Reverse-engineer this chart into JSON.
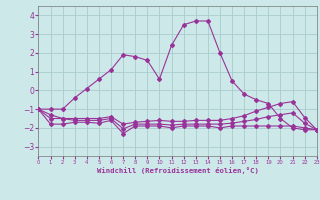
{
  "xlabel": "Windchill (Refroidissement éolien,°C)",
  "bg_color": "#cce8e8",
  "grid_color": "#aacccc",
  "line_color": "#993399",
  "xlim": [
    0,
    23
  ],
  "ylim": [
    -3.5,
    4.5
  ],
  "yticks": [
    -3,
    -2,
    -1,
    0,
    1,
    2,
    3,
    4
  ],
  "xticks": [
    0,
    1,
    2,
    3,
    4,
    5,
    6,
    7,
    8,
    9,
    10,
    11,
    12,
    13,
    14,
    15,
    16,
    17,
    18,
    19,
    20,
    21,
    22,
    23
  ],
  "series": [
    {
      "x": [
        0,
        1,
        2,
        3,
        4,
        5,
        6,
        7,
        8,
        9,
        10,
        11,
        12,
        13,
        14,
        15,
        16,
        17,
        18,
        19,
        20,
        21,
        22,
        23
      ],
      "y": [
        -1.0,
        -1.0,
        -1.0,
        -0.4,
        0.1,
        0.6,
        1.1,
        1.9,
        1.8,
        1.6,
        0.6,
        2.4,
        3.5,
        3.7,
        3.7,
        2.0,
        0.5,
        -0.2,
        -0.5,
        -0.7,
        -1.5,
        -2.0,
        -2.1,
        -2.1
      ]
    },
    {
      "x": [
        0,
        1,
        2,
        3,
        4,
        5,
        6,
        7,
        8,
        9,
        10,
        11,
        12,
        13,
        14,
        15,
        16,
        17,
        18,
        19,
        20,
        21,
        22,
        23
      ],
      "y": [
        -1.0,
        -1.8,
        -1.8,
        -1.7,
        -1.7,
        -1.75,
        -1.6,
        -2.3,
        -1.9,
        -1.9,
        -1.9,
        -2.0,
        -1.9,
        -1.9,
        -1.9,
        -2.0,
        -1.9,
        -1.9,
        -1.9,
        -1.9,
        -1.9,
        -1.9,
        -2.0,
        -2.1
      ]
    },
    {
      "x": [
        0,
        1,
        2,
        3,
        4,
        5,
        6,
        7,
        8,
        9,
        10,
        11,
        12,
        13,
        14,
        15,
        16,
        17,
        18,
        19,
        20,
        21,
        22,
        23
      ],
      "y": [
        -1.0,
        -1.5,
        -1.5,
        -1.6,
        -1.6,
        -1.6,
        -1.5,
        -2.05,
        -1.8,
        -1.8,
        -1.8,
        -1.85,
        -1.8,
        -1.8,
        -1.8,
        -1.8,
        -1.75,
        -1.65,
        -1.55,
        -1.4,
        -1.3,
        -1.2,
        -1.75,
        -2.1
      ]
    },
    {
      "x": [
        0,
        1,
        2,
        3,
        4,
        5,
        6,
        7,
        8,
        9,
        10,
        11,
        12,
        13,
        14,
        15,
        16,
        17,
        18,
        19,
        20,
        21,
        22,
        23
      ],
      "y": [
        -1.0,
        -1.3,
        -1.5,
        -1.5,
        -1.5,
        -1.5,
        -1.4,
        -1.8,
        -1.7,
        -1.65,
        -1.6,
        -1.65,
        -1.65,
        -1.6,
        -1.6,
        -1.6,
        -1.5,
        -1.35,
        -1.1,
        -0.9,
        -0.7,
        -0.6,
        -1.45,
        -2.1
      ]
    }
  ]
}
